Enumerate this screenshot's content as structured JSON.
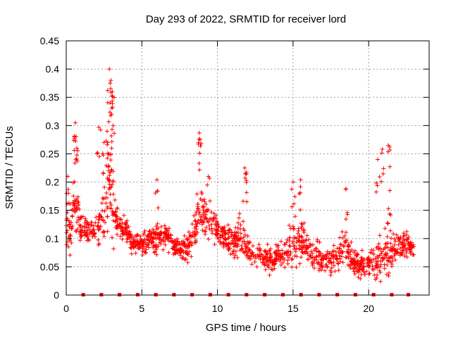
{
  "chart_data": {
    "type": "scatter",
    "title": "Day 293 of 2022, SRMTID for receiver lord",
    "xlabel": "GPS time / hours",
    "ylabel": "SRMTID / TECUs",
    "xlim": [
      0,
      24
    ],
    "ylim": [
      0,
      0.45
    ],
    "xticks": [
      0,
      5,
      10,
      15,
      20
    ],
    "yticks": [
      0,
      0.05,
      0.1,
      0.15,
      0.2,
      0.25,
      0.3,
      0.35,
      0.4,
      0.45
    ],
    "xtick_labels": [
      "0",
      "5",
      "10",
      "15",
      "20"
    ],
    "ytick_labels": [
      "0",
      "0.05",
      "0.1",
      "0.15",
      "0.2",
      "0.25",
      "0.3",
      "0.35",
      "0.4",
      "0.45"
    ],
    "grid": true,
    "marker": "plus",
    "color": "#ff0000",
    "zero_markers_x": [
      1.1,
      2.3,
      3.5,
      4.7,
      5.9,
      7.1,
      8.3,
      9.5,
      10.7,
      11.9,
      13.1,
      14.3,
      15.5,
      16.7,
      17.9,
      19.1,
      20.3,
      21.5,
      22.6
    ],
    "envelope": {
      "x": [
        0,
        0.3,
        0.6,
        1.0,
        1.5,
        2.0,
        2.5,
        2.8,
        3.0,
        3.3,
        3.6,
        4.0,
        4.5,
        5.0,
        5.5,
        6.0,
        6.5,
        7.0,
        7.5,
        8.0,
        8.5,
        8.8,
        9.2,
        9.6,
        10.0,
        10.5,
        11.0,
        11.5,
        12.0,
        12.5,
        13.0,
        13.5,
        14.0,
        14.5,
        15.0,
        15.5,
        16.0,
        16.5,
        17.0,
        17.5,
        18.0,
        18.5,
        19.0,
        19.5,
        20.0,
        20.5,
        21.0,
        21.5,
        22.0,
        22.5,
        23.0
      ],
      "center": [
        0.12,
        0.13,
        0.15,
        0.12,
        0.11,
        0.12,
        0.14,
        0.2,
        0.17,
        0.13,
        0.12,
        0.11,
        0.09,
        0.09,
        0.1,
        0.1,
        0.11,
        0.09,
        0.08,
        0.085,
        0.11,
        0.16,
        0.14,
        0.13,
        0.12,
        0.1,
        0.09,
        0.1,
        0.09,
        0.07,
        0.07,
        0.065,
        0.07,
        0.075,
        0.09,
        0.1,
        0.075,
        0.07,
        0.06,
        0.06,
        0.07,
        0.09,
        0.06,
        0.05,
        0.055,
        0.06,
        0.075,
        0.08,
        0.09,
        0.09,
        0.08
      ],
      "spread": [
        0.04,
        0.08,
        0.09,
        0.04,
        0.03,
        0.04,
        0.08,
        0.12,
        0.1,
        0.04,
        0.03,
        0.03,
        0.025,
        0.025,
        0.03,
        0.035,
        0.03,
        0.025,
        0.025,
        0.03,
        0.05,
        0.07,
        0.06,
        0.05,
        0.04,
        0.035,
        0.035,
        0.05,
        0.035,
        0.03,
        0.03,
        0.035,
        0.03,
        0.035,
        0.06,
        0.05,
        0.035,
        0.03,
        0.03,
        0.03,
        0.04,
        0.05,
        0.03,
        0.03,
        0.03,
        0.05,
        0.07,
        0.06,
        0.035,
        0.03,
        0.025
      ]
    },
    "peaks": [
      {
        "x": 0.1,
        "y": 0.21
      },
      {
        "x": 0.6,
        "y": 0.305
      },
      {
        "x": 0.55,
        "y": 0.28
      },
      {
        "x": 0.7,
        "y": 0.26
      },
      {
        "x": 2.15,
        "y": 0.297
      },
      {
        "x": 2.5,
        "y": 0.27
      },
      {
        "x": 2.85,
        "y": 0.4
      },
      {
        "x": 2.95,
        "y": 0.38
      },
      {
        "x": 3.05,
        "y": 0.36
      },
      {
        "x": 2.9,
        "y": 0.34
      },
      {
        "x": 3.1,
        "y": 0.3
      },
      {
        "x": 2.7,
        "y": 0.29
      },
      {
        "x": 3.0,
        "y": 0.26
      },
      {
        "x": 6.0,
        "y": 0.204
      },
      {
        "x": 8.8,
        "y": 0.287
      },
      {
        "x": 8.85,
        "y": 0.275
      },
      {
        "x": 9.4,
        "y": 0.21
      },
      {
        "x": 11.8,
        "y": 0.225
      },
      {
        "x": 11.85,
        "y": 0.215
      },
      {
        "x": 15.0,
        "y": 0.2
      },
      {
        "x": 15.5,
        "y": 0.204
      },
      {
        "x": 18.5,
        "y": 0.188
      },
      {
        "x": 20.6,
        "y": 0.24
      },
      {
        "x": 20.9,
        "y": 0.258
      },
      {
        "x": 21.3,
        "y": 0.265
      },
      {
        "x": 21.4,
        "y": 0.185
      }
    ]
  }
}
